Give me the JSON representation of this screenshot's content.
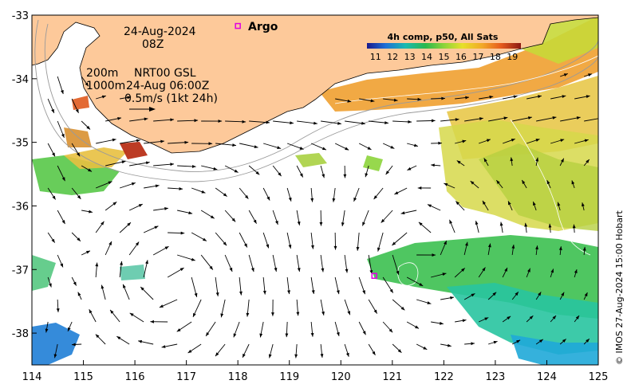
{
  "map": {
    "date": "24-Aug-2024",
    "time": "08Z",
    "depth_contour_200": "200m",
    "depth_contour_1000": "1000m",
    "product": "NRT00 GSL",
    "product_time": "24-Aug 06:00Z",
    "velocity_scale": "0.5m/s (1kt 24h)",
    "argo_label": "Argo",
    "credit": "© IMOS 27-Aug-2024 15:00 Hobart"
  },
  "colorbar": {
    "title": "4h comp, p50, All Sats",
    "labels": [
      "11",
      "12",
      "13",
      "14",
      "15",
      "16",
      "17",
      "18",
      "19"
    ],
    "min": 10.5,
    "max": 19.5
  },
  "axes": {
    "lon_ticks": [
      114,
      115,
      116,
      117,
      118,
      119,
      120,
      121,
      122,
      123,
      124,
      125
    ],
    "lat_ticks": [
      -33,
      -34,
      -35,
      -36,
      -37,
      -38
    ],
    "lon_range": [
      114,
      125
    ],
    "lat_range": [
      -38.5,
      -33
    ]
  },
  "argo_floats": [
    {
      "lon": 118.0,
      "lat": -33.17
    },
    {
      "lon": 120.65,
      "lat": -37.1
    }
  ],
  "colors": {
    "land": "#fdc99a",
    "ocean": "#ffffff",
    "argo": "#e000e0",
    "arrow": "#000000"
  }
}
